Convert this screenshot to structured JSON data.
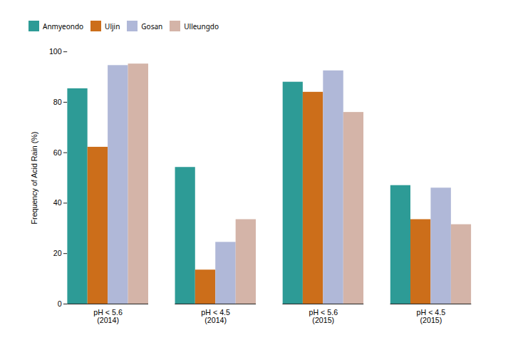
{
  "chart_data": {
    "type": "bar",
    "categories": [
      "pH < 5.6\n(2014)",
      "pH < 4.5\n(2014)",
      "pH < 5.6\n(2015)",
      "pH < 4.5\n(2015)"
    ],
    "series": [
      {
        "name": "Anmyeondo",
        "color": "#2d9b96",
        "values": [
          85.4,
          54.2,
          88.0,
          47.0
        ]
      },
      {
        "name": "Uljin",
        "color": "#cc6e1a",
        "values": [
          62.2,
          13.5,
          84.0,
          33.5
        ]
      },
      {
        "name": "Gosan",
        "color": "#b0b8d8",
        "values": [
          94.6,
          24.5,
          92.5,
          46.0
        ]
      },
      {
        "name": "Ulleungdo",
        "color": "#d4b4a8",
        "values": [
          95.2,
          33.5,
          76.0,
          31.5
        ]
      }
    ],
    "ylabel": "Frequency of Acid Rain (%)",
    "ylim": [
      0,
      100
    ],
    "yticks": [
      0,
      20,
      40,
      60,
      80,
      100
    ],
    "grid": false,
    "legend": "top"
  }
}
